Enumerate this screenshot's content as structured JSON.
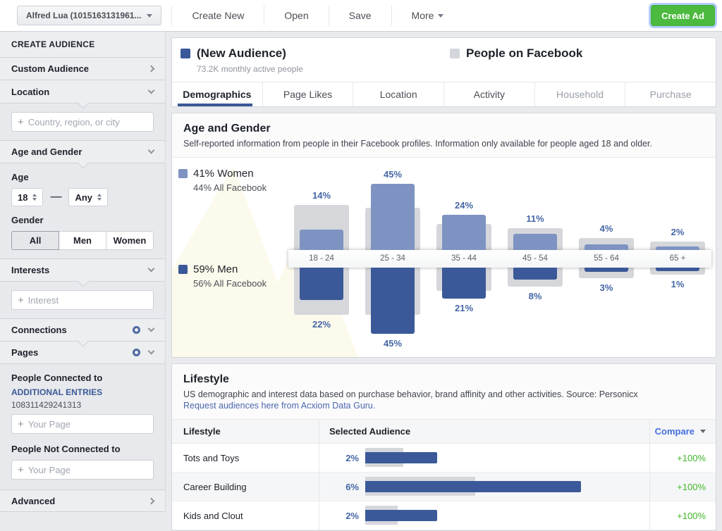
{
  "icons": {
    "plus": "+"
  },
  "topbar": {
    "account_selector": "Alfred Lua (1015163131961...",
    "create_new_label": "Create New",
    "open_label": "Open",
    "save_label": "Save",
    "more_label": "More",
    "create_ad_label": "Create Ad"
  },
  "sidebar": {
    "heading": "CREATE AUDIENCE",
    "custom_audience_label": "Custom Audience",
    "location": {
      "label": "Location",
      "placeholder": "Country, region, or city"
    },
    "age_gender": {
      "label": "Age and Gender",
      "age_label": "Age",
      "age_min": "18",
      "dash": "—",
      "age_max": "Any",
      "gender_label": "Gender",
      "gender_options": [
        "All",
        "Men",
        "Women"
      ],
      "gender_selected": "All"
    },
    "interests": {
      "label": "Interests",
      "placeholder": "Interest"
    },
    "connections_label": "Connections",
    "pages": {
      "label": "Pages",
      "connected_label": "People Connected to",
      "additional_entries_link": "ADDITIONAL ENTRIES",
      "page_id": "108311429241313",
      "page_placeholder": "Your Page",
      "not_connected_label": "People Not Connected to"
    },
    "advanced_label": "Advanced"
  },
  "audience_header": {
    "selected": {
      "title": "(New Audience)",
      "subtitle": "73.2K monthly active people"
    },
    "compare": {
      "title": "People on Facebook"
    }
  },
  "tabs": [
    {
      "label": "Demographics",
      "state": "active"
    },
    {
      "label": "Page Likes",
      "state": "enabled"
    },
    {
      "label": "Location",
      "state": "enabled"
    },
    {
      "label": "Activity",
      "state": "enabled"
    },
    {
      "label": "Household",
      "state": "disabled"
    },
    {
      "label": "Purchase",
      "state": "disabled"
    }
  ],
  "age_gender_section": {
    "title": "Age and Gender",
    "description": "Self-reported information from people in their Facebook profiles. Information only available for people aged 18 and older.",
    "legend": {
      "women_pct": "41% Women",
      "women_all": "44% All Facebook",
      "men_pct": "59% Men",
      "men_all": "56% All Facebook"
    },
    "chart_data": {
      "type": "bar",
      "categories": [
        "18 - 24",
        "25 - 34",
        "35 - 44",
        "45 - 54",
        "55 - 64",
        "65 +"
      ],
      "series": [
        {
          "name": "Women — Selected Audience",
          "values": [
            14,
            45,
            24,
            11,
            4,
            2
          ]
        },
        {
          "name": "Men — Selected Audience",
          "values": [
            22,
            45,
            21,
            8,
            3,
            1
          ]
        },
        {
          "name": "Women — All Facebook (estimated, unlabeled gray bars)",
          "values": [
            31,
            29,
            18,
            15,
            8,
            6
          ]
        },
        {
          "name": "Men — All Facebook (estimated, unlabeled gray bars)",
          "values": [
            32,
            32,
            16,
            13,
            7,
            5
          ]
        }
      ],
      "summary": {
        "women_selected": "41%",
        "women_all_facebook": "44%",
        "men_selected": "59%",
        "men_all_facebook": "56%"
      },
      "colors": {
        "women": "#7e93c1",
        "men": "#3b5998",
        "all_facebook": "#d5d7db",
        "label_blue": "#4566a5"
      }
    }
  },
  "lifestyle_section": {
    "title": "Lifestyle",
    "description": "US demographic and interest data based on purchase behavior, brand affinity and other activities. Source: Personicx",
    "link": "Request audiences here from Acxiom Data Guru.",
    "table": {
      "headers": [
        "Lifestyle",
        "Selected Audience",
        "Compare"
      ],
      "chart_data": {
        "type": "table",
        "rows": [
          {
            "label": "Tots and Toys",
            "pct_label": "2%",
            "selected_pct": 2,
            "all_facebook_pct_est": 1.05,
            "compare": "+100%"
          },
          {
            "label": "Career Building",
            "pct_label": "6%",
            "selected_pct": 6,
            "all_facebook_pct_est": 3.05,
            "compare": "+100%"
          },
          {
            "label": "Kids and Clout",
            "pct_label": "2%",
            "selected_pct": 2,
            "all_facebook_pct_est": 0.9,
            "compare": "+100%"
          }
        ]
      }
    }
  }
}
